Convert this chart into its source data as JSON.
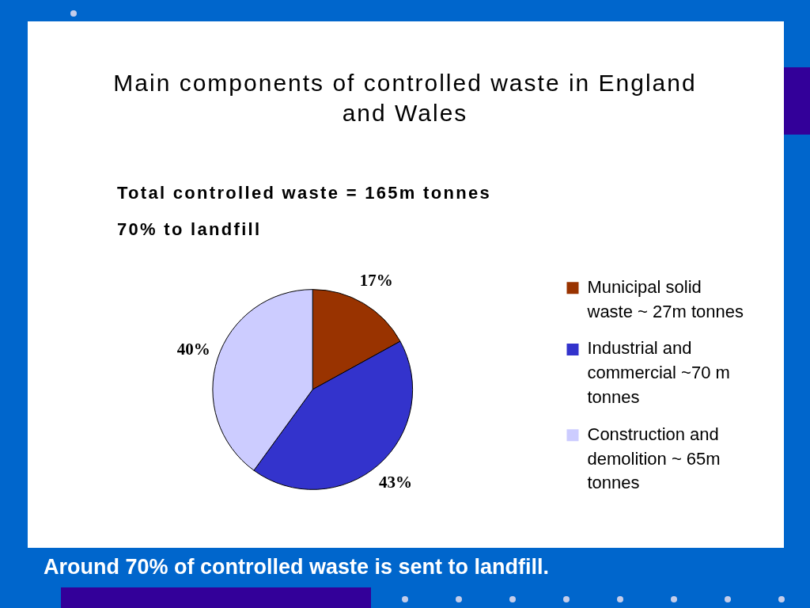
{
  "chart_data": {
    "type": "pie",
    "title": "Main components of controlled waste in England and Wales",
    "categories": [
      "Municipal solid waste ~ 27m tonnes",
      "Industrial and commercial ~70 m tonnes",
      "Construction and demolition ~ 65m tonnes"
    ],
    "values": [
      17,
      43,
      40
    ],
    "colors": [
      "#993300",
      "#3333cc",
      "#ccccff"
    ],
    "value_labels": [
      "17%",
      "43%",
      "40%"
    ],
    "legend": "right",
    "annotations": [
      "Total controlled waste = 165m tonnes",
      "70% to landfill",
      "Around 70% of controlled waste is sent to landfill."
    ]
  }
}
